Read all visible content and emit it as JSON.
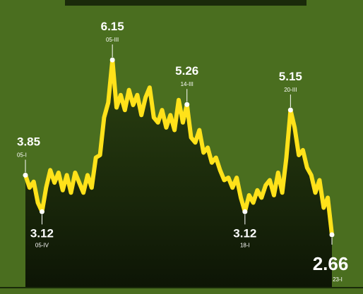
{
  "chart_data": {
    "type": "area",
    "title": "",
    "xlabel": "",
    "ylabel": "",
    "ylim": [
      2.0,
      6.5
    ],
    "grid": false,
    "legend": "none",
    "colors": {
      "background": "#4a6e1f",
      "line": "#ffe21a",
      "area_top": "#2c4312",
      "area_bottom": "#0d1505",
      "top_bar": "#1a2a0a"
    },
    "series": [
      {
        "values": [
          3.85,
          3.6,
          3.72,
          3.3,
          3.12,
          3.6,
          3.95,
          3.7,
          3.9,
          3.55,
          3.85,
          3.5,
          3.9,
          3.7,
          3.5,
          3.85,
          3.6,
          4.2,
          4.25,
          5.0,
          5.3,
          6.15,
          5.2,
          5.45,
          5.15,
          5.55,
          5.25,
          5.45,
          5.05,
          5.4,
          5.6,
          5.0,
          4.9,
          5.15,
          4.8,
          5.05,
          4.75,
          5.35,
          4.9,
          5.26,
          4.6,
          4.5,
          4.75,
          4.3,
          4.4,
          4.1,
          4.2,
          3.95,
          3.75,
          3.8,
          3.6,
          3.8,
          3.4,
          3.12,
          3.45,
          3.3,
          3.55,
          3.4,
          3.65,
          3.75,
          3.45,
          3.9,
          3.5,
          4.2,
          5.15,
          4.8,
          4.25,
          4.35,
          4.0,
          3.85,
          3.5,
          3.75,
          3.2,
          3.4,
          2.66
        ]
      }
    ],
    "annotations": [
      {
        "index": 0,
        "value": "3.85",
        "date": "05-I",
        "pos": "above"
      },
      {
        "index": 4,
        "value": "3.12",
        "date": "05-IV",
        "pos": "below"
      },
      {
        "index": 21,
        "value": "6.15",
        "date": "05-III",
        "pos": "above"
      },
      {
        "index": 39,
        "value": "5.26",
        "date": "14-III",
        "pos": "above"
      },
      {
        "index": 53,
        "value": "3.12",
        "date": "18-I",
        "pos": "below"
      },
      {
        "index": 64,
        "value": "5.15",
        "date": "20-III",
        "pos": "above"
      },
      {
        "index": 74,
        "value": "2.66",
        "date": "23-I",
        "pos": "below-large"
      }
    ]
  }
}
